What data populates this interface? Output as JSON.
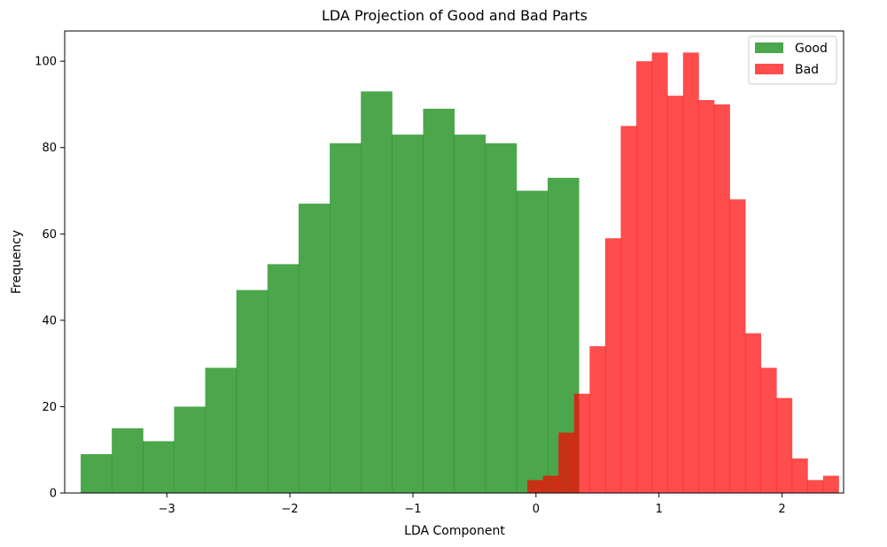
{
  "chart_data": {
    "type": "histogram",
    "title": "LDA Projection of Good and Bad Parts",
    "xlabel": "LDA Component",
    "ylabel": "Frequency",
    "xlim": [
      -3.83,
      2.5
    ],
    "ylim": [
      0,
      107
    ],
    "x_ticks": [
      -3,
      -2,
      -1,
      0,
      1,
      2
    ],
    "x_tick_labels": [
      "−3",
      "−2",
      "−1",
      "0",
      "1",
      "2"
    ],
    "y_ticks": [
      0,
      20,
      40,
      60,
      80,
      100
    ],
    "y_tick_labels": [
      "0",
      "20",
      "40",
      "60",
      "80",
      "100"
    ],
    "grid": false,
    "legend_position": "top-right",
    "series": [
      {
        "name": "Good",
        "color": "#008000",
        "alpha": 0.7,
        "bin_start": -3.7,
        "bin_width": 0.253,
        "values": [
          9,
          15,
          12,
          20,
          29,
          47,
          53,
          67,
          81,
          93,
          83,
          89,
          83,
          81,
          70,
          73,
          0,
          0,
          0,
          0
        ]
      },
      {
        "name": "Bad",
        "color": "#ff0000",
        "alpha": 0.7,
        "bin_start": -0.07,
        "bin_width": 0.1265,
        "values": [
          3,
          4,
          14,
          23,
          34,
          59,
          85,
          100,
          102,
          92,
          102,
          91,
          90,
          68,
          37,
          29,
          22,
          8,
          3,
          4
        ]
      }
    ],
    "legend": [
      {
        "label": "Good",
        "color": "#008000"
      },
      {
        "label": "Bad",
        "color": "#ff0000"
      }
    ]
  }
}
